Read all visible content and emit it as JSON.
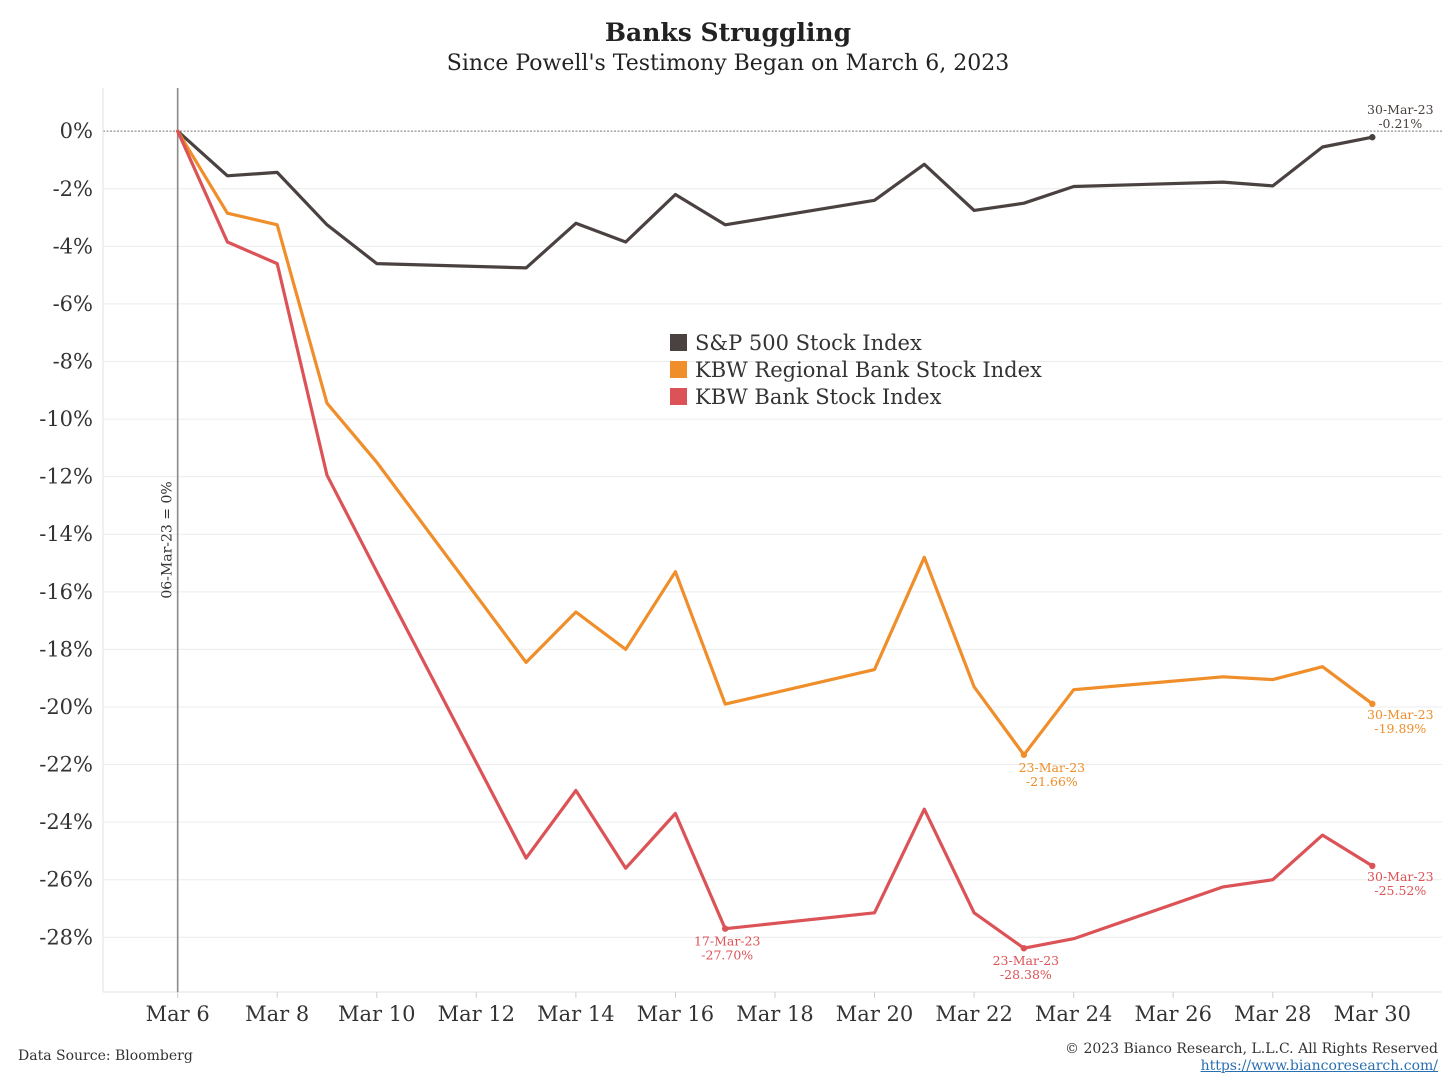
{
  "chart_data": {
    "type": "line",
    "title": "Banks Struggling",
    "subtitle": "Since Powell's Testimony Began on March 6, 2023",
    "xlabel": "",
    "ylabel": "",
    "x_tick_labels": [
      "Mar 6",
      "Mar 8",
      "Mar 10",
      "Mar 12",
      "Mar 14",
      "Mar 16",
      "Mar 18",
      "Mar 20",
      "Mar 22",
      "Mar 24",
      "Mar 26",
      "Mar 28",
      "Mar 30"
    ],
    "x_tick_days": [
      6,
      8,
      10,
      12,
      14,
      16,
      18,
      20,
      22,
      24,
      26,
      28,
      30
    ],
    "xlim": [
      4.5,
      31.4
    ],
    "y_tick_labels": [
      "0%",
      "-2%",
      "-4%",
      "-6%",
      "-8%",
      "-10%",
      "-12%",
      "-14%",
      "-16%",
      "-18%",
      "-20%",
      "-22%",
      "-24%",
      "-26%",
      "-28%"
    ],
    "y_tick_values": [
      0,
      -2,
      -4,
      -6,
      -8,
      -10,
      -12,
      -14,
      -16,
      -18,
      -20,
      -22,
      -24,
      -26,
      -28
    ],
    "ylim": [
      -29.9,
      1.5
    ],
    "grid": true,
    "legend_position": "center",
    "reference_line_label": "06-Mar-23 = 0%",
    "x_dates": [
      "2023-03-06",
      "2023-03-07",
      "2023-03-08",
      "2023-03-09",
      "2023-03-10",
      "2023-03-13",
      "2023-03-14",
      "2023-03-15",
      "2023-03-16",
      "2023-03-17",
      "2023-03-20",
      "2023-03-21",
      "2023-03-22",
      "2023-03-23",
      "2023-03-24",
      "2023-03-27",
      "2023-03-28",
      "2023-03-29",
      "2023-03-30"
    ],
    "series": [
      {
        "name": "S&P 500 Stock Index",
        "color": "#4a4240",
        "values": [
          0,
          -1.55,
          -1.43,
          -3.25,
          -4.6,
          -4.75,
          -3.2,
          -3.85,
          -2.2,
          -3.25,
          -2.4,
          -1.15,
          -2.75,
          -2.5,
          -1.92,
          -1.77,
          -1.9,
          -0.55,
          -0.21
        ]
      },
      {
        "name": "KBW Regional Bank Stock Index",
        "color": "#ef8e2a",
        "values": [
          0,
          -2.85,
          -3.25,
          -9.45,
          -11.5,
          -18.45,
          -16.7,
          -18.0,
          -15.3,
          -19.9,
          -18.7,
          -14.8,
          -19.3,
          -21.66,
          -19.4,
          -18.95,
          -19.05,
          -18.6,
          -19.89
        ]
      },
      {
        "name": "KBW Bank Stock Index",
        "color": "#dc5357",
        "values": [
          0,
          -3.85,
          -4.6,
          -11.95,
          -15.3,
          -25.25,
          -22.9,
          -25.6,
          -23.7,
          -27.7,
          -27.15,
          -23.55,
          -27.15,
          -28.38,
          -28.05,
          -26.25,
          -26.0,
          -24.45,
          -25.52
        ]
      }
    ],
    "annotations": [
      {
        "series": 0,
        "date": "2023-03-30",
        "value": -0.21,
        "label_date": "30-Mar-23",
        "label_value": "-0.21%"
      },
      {
        "series": 1,
        "date": "2023-03-23",
        "value": -21.66,
        "label_date": "23-Mar-23",
        "label_value": "-21.66%"
      },
      {
        "series": 1,
        "date": "2023-03-30",
        "value": -19.89,
        "label_date": "30-Mar-23",
        "label_value": "-19.89%"
      },
      {
        "series": 2,
        "date": "2023-03-17",
        "value": -27.7,
        "label_date": "17-Mar-23",
        "label_value": "-27.70%"
      },
      {
        "series": 2,
        "date": "2023-03-23",
        "value": -28.38,
        "label_date": "23-Mar-23",
        "label_value": "-28.38%"
      },
      {
        "series": 2,
        "date": "2023-03-30",
        "value": -25.52,
        "label_date": "30-Mar-23",
        "label_value": "-25.52%"
      }
    ]
  },
  "footer": {
    "source": "Data Source: Bloomberg",
    "copyright": "© 2023 Bianco Research, L.L.C. All Rights Reserved",
    "url": "https://www.biancoresearch.com/"
  }
}
